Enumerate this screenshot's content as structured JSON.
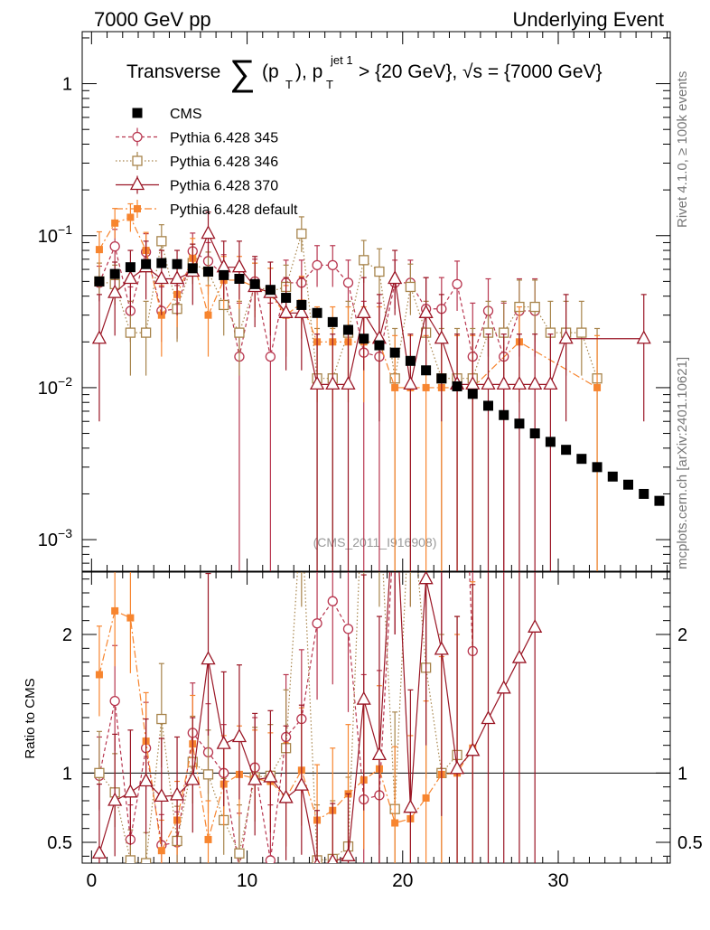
{
  "header": {
    "left_label": "7000 GeV pp",
    "right_label": "Underlying Event"
  },
  "title": {
    "prefix": "Transverse ",
    "sum_symbol": "∑",
    "pt_open": "(p",
    "pt_sub": "T",
    "pt_close": "), p",
    "jet_sup": "jet 1",
    "jet_sub": "T",
    "rest": " > {20 GeV}, √s = {7000 GeV}"
  },
  "side_labels": {
    "rivet": "Rivet 4.1.0, ≥ 100k events",
    "mcplots": "mcplots.cern.ch [arXiv:2401.10621]"
  },
  "watermark": "(CMS_2011_I916908)",
  "lower_ylabel": "Ratio to CMS",
  "colors": {
    "cms": "#000000",
    "p345": "#b8364f",
    "p346": "#a7844b",
    "p370": "#9a1625",
    "pdef": "#f7852f",
    "label_gray": "#777777"
  },
  "legend": [
    {
      "name": "CMS",
      "key": "cms"
    },
    {
      "name": "Pythia 6.428 345",
      "key": "p345"
    },
    {
      "name": "Pythia 6.428 346",
      "key": "p346"
    },
    {
      "name": "Pythia 6.428 370",
      "key": "p370"
    },
    {
      "name": "Pythia 6.428 default",
      "key": "pdef"
    }
  ],
  "chart_data": {
    "type": "scatter",
    "x_ticks": [
      0,
      10,
      20,
      30
    ],
    "x_tick_labels": [
      "0",
      "10",
      "20",
      "30"
    ],
    "xlim": [
      -0.6,
      37.2
    ],
    "upper": {
      "yscale": "log",
      "ylim": [
        0.00062,
        2.2
      ],
      "y_ticks": [
        0.001,
        0.01,
        0.1,
        1
      ],
      "y_tick_labels": [
        "10−3",
        "10−2",
        "10−1",
        "1"
      ]
    },
    "lower": {
      "ylim": [
        0.35,
        2.45
      ],
      "y_ticks": [
        0.5,
        1,
        2
      ],
      "y_tick_labels": [
        "0.5",
        "1",
        "2"
      ],
      "reference_line": 1
    },
    "series": [
      {
        "name": "CMS",
        "key": "cms",
        "x": [
          0.5,
          1.5,
          2.5,
          3.5,
          4.5,
          5.5,
          6.5,
          7.5,
          8.5,
          9.5,
          10.5,
          11.5,
          12.5,
          13.5,
          14.5,
          15.5,
          16.5,
          17.5,
          18.5,
          19.5,
          20.5,
          21.5,
          22.5,
          23.5,
          24.5,
          25.5,
          26.5,
          27.5,
          28.5,
          29.5,
          30.5,
          31.5,
          32.5,
          33.5,
          34.5,
          35.5,
          36.5
        ],
        "y": [
          0.05,
          0.056,
          0.062,
          0.065,
          0.066,
          0.065,
          0.061,
          0.058,
          0.055,
          0.052,
          0.048,
          0.044,
          0.039,
          0.035,
          0.031,
          0.027,
          0.024,
          0.021,
          0.019,
          0.017,
          0.015,
          0.013,
          0.0115,
          0.0102,
          0.0091,
          0.0076,
          0.0066,
          0.0058,
          0.005,
          0.0044,
          0.0039,
          0.0034,
          0.003,
          0.0026,
          0.0023,
          0.002,
          0.0018
        ],
        "ratio_x": [],
        "ratio_y": [],
        "ratio_err_lo": [],
        "ratio_err_hi": []
      },
      {
        "name": "Pythia 6.428 345",
        "key": "p345",
        "x": [
          0.5,
          1.5,
          2.5,
          3.5,
          4.5,
          5.5,
          6.5,
          7.5,
          8.5,
          9.5,
          10.5,
          11.5,
          12.5,
          13.5,
          14.5,
          15.5,
          16.5,
          17.5,
          18.5,
          19.5,
          20.5,
          21.5,
          22.5,
          23.5,
          24.5,
          25.5,
          26.5,
          27.5,
          28.5
        ],
        "y": [
          0.049,
          0.085,
          0.032,
          0.078,
          0.032,
          0.033,
          0.079,
          0.068,
          0.055,
          0.016,
          0.05,
          0.016,
          0.049,
          0.049,
          0.064,
          0.064,
          0.049,
          0.017,
          0.016,
          0.049,
          0.049,
          0.033,
          0.033,
          0.048,
          0.016,
          0.032,
          0.016,
          0.032,
          0.032
        ],
        "err_lo": [
          0.012,
          0.02,
          0.012,
          0.02,
          0.012,
          0.012,
          0.02,
          0.018,
          0.016,
          0.016,
          0.016,
          0.016,
          0.016,
          0.016,
          0.018,
          0.018,
          0.016,
          0.017,
          0.016,
          0.016,
          0.016,
          0.016,
          0.016,
          0.016,
          0.016,
          0.016,
          0.016,
          0.016,
          0.016
        ],
        "err_hi": [
          0.014,
          0.025,
          0.014,
          0.025,
          0.014,
          0.014,
          0.025,
          0.022,
          0.02,
          0.02,
          0.02,
          0.02,
          0.02,
          0.02,
          0.022,
          0.022,
          0.02,
          0.02,
          0.02,
          0.02,
          0.02,
          0.02,
          0.02,
          0.02,
          0.02,
          0.02,
          0.02,
          0.02,
          0.02
        ],
        "ratio_x": [
          0.5,
          1.5,
          2.5,
          3.5,
          4.5,
          5.5,
          6.5,
          7.5,
          8.5,
          9.5,
          10.5,
          11.5,
          12.5,
          13.5,
          14.5,
          15.5,
          16.5,
          17.5,
          18.5,
          19.5,
          20.5,
          21.5,
          22.5,
          23.5,
          24.5
        ],
        "ratio_y": [
          0.98,
          1.52,
          0.52,
          1.18,
          0.48,
          0.5,
          1.29,
          1.15,
          1.0,
          0.31,
          1.04,
          0.37,
          1.26,
          1.39,
          2.08,
          2.24,
          2.04,
          0.81,
          0.84,
          2.9,
          3.2,
          2.5,
          2.9,
          4.7,
          1.88
        ],
        "ratio_err_lo": [
          0.25,
          0.36,
          0.22,
          0.3,
          0.2,
          0.2,
          0.32,
          0.3,
          0.3,
          0.31,
          0.3,
          0.37,
          0.4,
          0.45,
          0.55,
          0.6,
          0.6,
          0.81,
          0.84,
          0.9,
          1.0,
          1.0,
          1.0,
          1.2,
          1.0
        ],
        "ratio_err_hi": [
          0.28,
          0.4,
          0.25,
          0.33,
          0.22,
          0.22,
          0.36,
          0.35,
          0.35,
          0.4,
          0.36,
          0.4,
          0.45,
          0.5,
          0.6,
          0.65,
          0.65,
          0.9,
          0.9,
          1.0,
          1.0,
          1.0,
          1.0,
          1.2,
          1.0
        ]
      },
      {
        "name": "Pythia 6.428 346",
        "key": "p346",
        "x": [
          0.5,
          1.5,
          2.5,
          3.5,
          4.5,
          5.5,
          6.5,
          7.5,
          8.5,
          9.5,
          10.5,
          11.5,
          12.5,
          13.5,
          14.5,
          15.5,
          16.5,
          17.5,
          18.5,
          19.5,
          20.5,
          21.5,
          22.5,
          23.5,
          24.5,
          25.5,
          26.5,
          27.5,
          28.5,
          29.5,
          30.5,
          31.5,
          32.5
        ],
        "y": [
          0.05,
          0.048,
          0.023,
          0.023,
          0.092,
          0.033,
          0.066,
          0.058,
          0.035,
          0.023,
          0.047,
          0.043,
          0.046,
          0.103,
          0.0115,
          0.0115,
          0.023,
          0.069,
          0.058,
          0.0115,
          0.046,
          0.023,
          0.0115,
          0.0115,
          0.0115,
          0.023,
          0.023,
          0.034,
          0.034,
          0.023,
          0.023,
          0.023,
          0.0115
        ],
        "err_lo": [
          0.013,
          0.013,
          0.011,
          0.011,
          0.022,
          0.013,
          0.018,
          0.017,
          0.013,
          0.011,
          0.015,
          0.015,
          0.015,
          0.025,
          0.0115,
          0.0115,
          0.011,
          0.02,
          0.02,
          0.0115,
          0.016,
          0.011,
          0.0115,
          0.0115,
          0.0115,
          0.011,
          0.011,
          0.014,
          0.014,
          0.011,
          0.011,
          0.011,
          0.0115
        ],
        "err_hi": [
          0.016,
          0.016,
          0.014,
          0.014,
          0.026,
          0.016,
          0.022,
          0.02,
          0.016,
          0.014,
          0.019,
          0.018,
          0.018,
          0.03,
          0.013,
          0.013,
          0.014,
          0.024,
          0.024,
          0.013,
          0.019,
          0.014,
          0.013,
          0.013,
          0.013,
          0.014,
          0.014,
          0.017,
          0.017,
          0.014,
          0.014,
          0.014,
          0.013
        ],
        "ratio_x": [
          0.5,
          1.5,
          2.5,
          3.5,
          4.5,
          5.5,
          6.5,
          7.5,
          8.5,
          9.5,
          10.5,
          11.5,
          12.5,
          13.5,
          14.5,
          15.5,
          16.5,
          17.5,
          18.5,
          19.5,
          20.5,
          21.5,
          22.5,
          23.5
        ],
        "ratio_y": [
          1.0,
          0.86,
          0.37,
          0.35,
          1.39,
          0.51,
          1.08,
          0.99,
          0.66,
          0.42,
          0.97,
          0.98,
          1.18,
          2.9,
          0.37,
          0.38,
          0.47,
          3.3,
          3.0,
          0.74,
          3.1,
          1.76,
          1.0,
          1.13
        ],
        "ratio_err_lo": [
          0.26,
          0.25,
          0.2,
          0.2,
          0.35,
          0.22,
          0.3,
          0.28,
          0.25,
          0.3,
          0.32,
          0.33,
          0.38,
          0.7,
          0.37,
          0.38,
          0.47,
          0.9,
          0.8,
          0.6,
          0.9,
          0.8,
          0.9,
          0.9
        ],
        "ratio_err_hi": [
          0.3,
          0.28,
          0.22,
          0.22,
          0.4,
          0.25,
          0.33,
          0.32,
          0.3,
          0.35,
          0.36,
          0.37,
          0.42,
          0.8,
          0.4,
          0.42,
          0.5,
          1.0,
          0.9,
          0.7,
          1.0,
          0.9,
          1.0,
          1.0
        ]
      },
      {
        "name": "Pythia 6.428 370",
        "key": "p370",
        "x": [
          0.5,
          1.5,
          2.5,
          3.5,
          4.5,
          5.5,
          6.5,
          7.5,
          8.5,
          9.5,
          10.5,
          11.5,
          12.5,
          13.5,
          14.5,
          15.5,
          16.5,
          17.5,
          18.5,
          19.5,
          20.5,
          21.5,
          22.5,
          23.5,
          24.5,
          25.5,
          26.5,
          27.5,
          28.5,
          29.5,
          30.5,
          35.5
        ],
        "y": [
          0.021,
          0.042,
          0.052,
          0.062,
          0.052,
          0.052,
          0.058,
          0.103,
          0.062,
          0.062,
          0.046,
          0.042,
          0.031,
          0.031,
          0.0105,
          0.0105,
          0.0105,
          0.031,
          0.021,
          0.052,
          0.0105,
          0.031,
          0.021,
          0.0105,
          0.0105,
          0.0105,
          0.0105,
          0.0105,
          0.0105,
          0.0105,
          0.021,
          0.021
        ],
        "err_lo": [
          0.015,
          0.02,
          0.022,
          0.024,
          0.022,
          0.022,
          0.023,
          0.03,
          0.024,
          0.024,
          0.021,
          0.02,
          0.018,
          0.018,
          0.0105,
          0.0105,
          0.0105,
          0.018,
          0.015,
          0.022,
          0.0105,
          0.018,
          0.015,
          0.0105,
          0.0105,
          0.0105,
          0.0105,
          0.0105,
          0.0105,
          0.0105,
          0.015,
          0.015
        ],
        "err_hi": [
          0.02,
          0.025,
          0.028,
          0.03,
          0.028,
          0.028,
          0.03,
          0.04,
          0.03,
          0.03,
          0.027,
          0.025,
          0.022,
          0.022,
          0.012,
          0.012,
          0.012,
          0.022,
          0.02,
          0.028,
          0.012,
          0.022,
          0.02,
          0.012,
          0.012,
          0.012,
          0.012,
          0.012,
          0.012,
          0.012,
          0.02,
          0.02
        ],
        "ratio_x": [
          0.5,
          1.5,
          2.5,
          3.5,
          4.5,
          5.5,
          6.5,
          7.5,
          8.5,
          9.5,
          10.5,
          11.5,
          12.5,
          13.5,
          14.5,
          15.5,
          16.5,
          17.5,
          18.5,
          19.5,
          20.5,
          21.5,
          22.5,
          23.5,
          24.5,
          25.5,
          26.5,
          27.5,
          28.5
        ],
        "ratio_y": [
          0.42,
          0.8,
          0.86,
          0.94,
          0.83,
          0.84,
          0.95,
          1.82,
          1.21,
          1.26,
          0.95,
          0.97,
          0.82,
          0.91,
          0.33,
          0.36,
          0.4,
          1.53,
          1.13,
          3.1,
          0.75,
          2.4,
          1.89,
          1.03,
          1.16,
          1.39,
          1.61,
          1.83,
          2.05
        ],
        "ratio_err_lo": [
          0.42,
          0.4,
          0.38,
          0.38,
          0.36,
          0.36,
          0.38,
          0.55,
          0.45,
          0.45,
          0.4,
          0.4,
          0.45,
          0.5,
          0.33,
          0.36,
          0.4,
          0.8,
          0.9,
          1.1,
          0.75,
          1.2,
          1.2,
          1.03,
          1.16,
          1.39,
          1.61,
          1.83,
          2.05
        ],
        "ratio_err_hi": [
          0.5,
          0.48,
          0.45,
          0.45,
          0.42,
          0.42,
          0.45,
          0.62,
          0.52,
          0.52,
          0.48,
          0.48,
          0.52,
          0.58,
          0.4,
          0.42,
          0.45,
          0.9,
          1.0,
          1.2,
          0.85,
          1.3,
          1.3,
          1.1,
          1.2,
          1.4,
          1.6,
          1.8,
          2.0
        ]
      },
      {
        "name": "Pythia 6.428 default",
        "key": "pdef",
        "x": [
          0.5,
          1.5,
          2.5,
          3.5,
          4.5,
          5.5,
          6.5,
          7.5,
          8.5,
          9.5,
          10.5,
          11.5,
          12.5,
          13.5,
          14.5,
          15.5,
          16.5,
          17.5,
          18.5,
          19.5,
          20.5,
          21.5,
          22.5,
          23.5,
          24.5,
          27.5,
          32.5
        ],
        "y": [
          0.081,
          0.121,
          0.132,
          0.08,
          0.03,
          0.041,
          0.071,
          0.03,
          0.051,
          0.051,
          0.046,
          0.041,
          0.03,
          0.036,
          0.02,
          0.02,
          0.02,
          0.02,
          0.02,
          0.01,
          0.01,
          0.01,
          0.01,
          0.01,
          0.01,
          0.02,
          0.01
        ],
        "err_lo": [
          0.02,
          0.025,
          0.026,
          0.02,
          0.014,
          0.016,
          0.02,
          0.014,
          0.018,
          0.018,
          0.017,
          0.016,
          0.014,
          0.015,
          0.012,
          0.012,
          0.012,
          0.012,
          0.012,
          0.01,
          0.01,
          0.01,
          0.01,
          0.01,
          0.01,
          0.012,
          0.01
        ],
        "err_hi": [
          0.025,
          0.03,
          0.03,
          0.025,
          0.017,
          0.02,
          0.025,
          0.017,
          0.022,
          0.022,
          0.02,
          0.02,
          0.017,
          0.018,
          0.014,
          0.014,
          0.014,
          0.014,
          0.014,
          0.012,
          0.012,
          0.012,
          0.012,
          0.012,
          0.012,
          0.014,
          0.012
        ],
        "ratio_x": [
          0.5,
          1.5,
          2.5,
          3.5,
          4.5,
          5.5,
          6.5,
          7.5,
          8.5,
          9.5,
          10.5,
          11.5,
          12.5,
          13.5,
          14.5,
          15.5,
          16.5,
          17.5,
          18.5,
          19.5,
          20.5,
          21.5,
          22.5,
          23.5,
          24.5
        ],
        "ratio_y": [
          1.71,
          2.17,
          2.12,
          1.23,
          0.44,
          0.66,
          1.21,
          0.52,
          0.92,
          0.99,
          0.96,
          0.94,
          0.82,
          1.02,
          0.66,
          0.73,
          0.85,
          0.95,
          1.03,
          0.64,
          0.67,
          0.82,
          0.99,
          1.0,
          1.18
        ],
        "ratio_err_lo": [
          0.3,
          0.4,
          0.4,
          0.3,
          0.2,
          0.25,
          0.3,
          0.25,
          0.3,
          0.3,
          0.3,
          0.3,
          0.35,
          0.4,
          0.35,
          0.4,
          0.45,
          0.5,
          0.55,
          0.5,
          0.55,
          0.65,
          0.8,
          1.0,
          1.18
        ],
        "ratio_err_hi": [
          0.35,
          0.45,
          0.45,
          0.35,
          0.22,
          0.28,
          0.35,
          0.28,
          0.35,
          0.35,
          0.35,
          0.35,
          0.4,
          0.45,
          0.4,
          0.45,
          0.5,
          0.55,
          0.6,
          0.55,
          0.6,
          0.7,
          0.85,
          1.0,
          1.2
        ]
      }
    ]
  }
}
